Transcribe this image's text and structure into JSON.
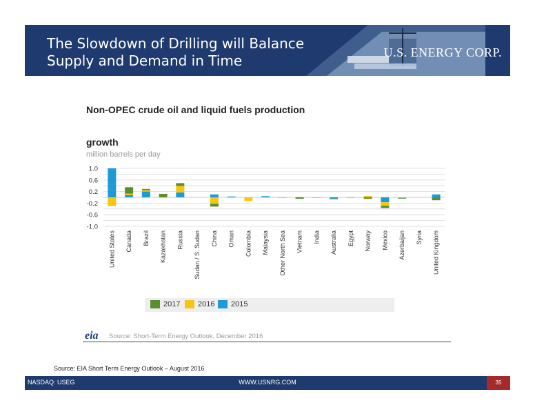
{
  "header": {
    "title_line1": "The Slowdown of Drilling will Balance",
    "title_line2": "Supply and Demand in Time",
    "logo_text": "U.S. ENERGY CORP."
  },
  "source_footnote": "Source: EIA Short Term Energy Outlook – August 2016",
  "eia": {
    "logo": "eia",
    "source": "Source: Short-Term Energy Outlook, December 2016"
  },
  "footer": {
    "left": "NASDAQ: USEG",
    "center": "WWW.USNRG.COM",
    "page": "35"
  },
  "colors": {
    "2017": "#5b8f2e",
    "2016": "#f7c613",
    "2015": "#1e9ad6",
    "header": "#1f3a6e",
    "page_box": "#a52a2a"
  },
  "chart_data": {
    "type": "bar",
    "stacked": true,
    "title": "Non-OPEC crude oil and liquid fuels production",
    "subtitle": "growth",
    "ylabel": "million barrels per day",
    "ylim": [
      -1.0,
      1.0
    ],
    "yticks": [
      "1.0",
      "0.6",
      "0.2",
      "-0.2",
      "-0.6",
      "-1.0"
    ],
    "categories": [
      "United States",
      "Canada",
      "Brazil",
      "Kazakhstan",
      "Russia",
      "Sudan / S. Sudan",
      "China",
      "Oman",
      "Colombia",
      "Malaysia",
      "Other North Sea",
      "Vietnam",
      "India",
      "Australia",
      "Egypt",
      "Norway",
      "Mexico",
      "Azerbaijan",
      "Syria",
      "United Kingdom"
    ],
    "series": [
      {
        "name": "2015",
        "values": [
          1.0,
          0.08,
          0.2,
          0.0,
          0.17,
          0.0,
          0.1,
          0.03,
          0.0,
          0.04,
          0.0,
          0.0,
          0.0,
          -0.05,
          0.0,
          0.0,
          -0.17,
          0.0,
          0.0,
          0.1
        ]
      },
      {
        "name": "2016",
        "values": [
          -0.3,
          0.05,
          0.05,
          0.0,
          0.22,
          0.0,
          -0.22,
          0.0,
          -0.12,
          0.0,
          -0.02,
          0.0,
          -0.02,
          -0.03,
          -0.02,
          0.05,
          -0.12,
          -0.02,
          0.0,
          0.0
        ]
      },
      {
        "name": "2017",
        "values": [
          0.0,
          0.22,
          0.04,
          0.12,
          0.1,
          0.0,
          -0.1,
          0.0,
          0.0,
          0.0,
          0.0,
          -0.05,
          0.0,
          0.0,
          0.0,
          -0.05,
          -0.08,
          -0.02,
          0.0,
          -0.1
        ]
      }
    ],
    "legend": {
      "placement": "bottom",
      "order": [
        "2017",
        "2016",
        "2015"
      ]
    },
    "grid": true
  }
}
